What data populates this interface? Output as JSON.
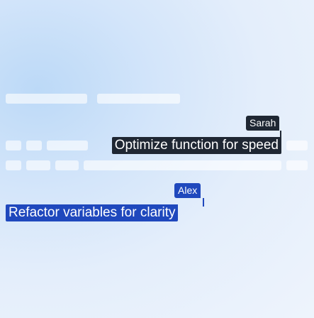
{
  "colors": {
    "sarah_accent": "#1f2733",
    "alex_accent": "#1f48bd",
    "placeholder_bar": "#ffffff"
  },
  "cursors": {
    "sarah": {
      "user_name": "Sarah",
      "suggestion": "Optimize function for speed"
    },
    "alex": {
      "user_name": "Alex",
      "suggestion": "Refactor variables for clarity"
    }
  }
}
